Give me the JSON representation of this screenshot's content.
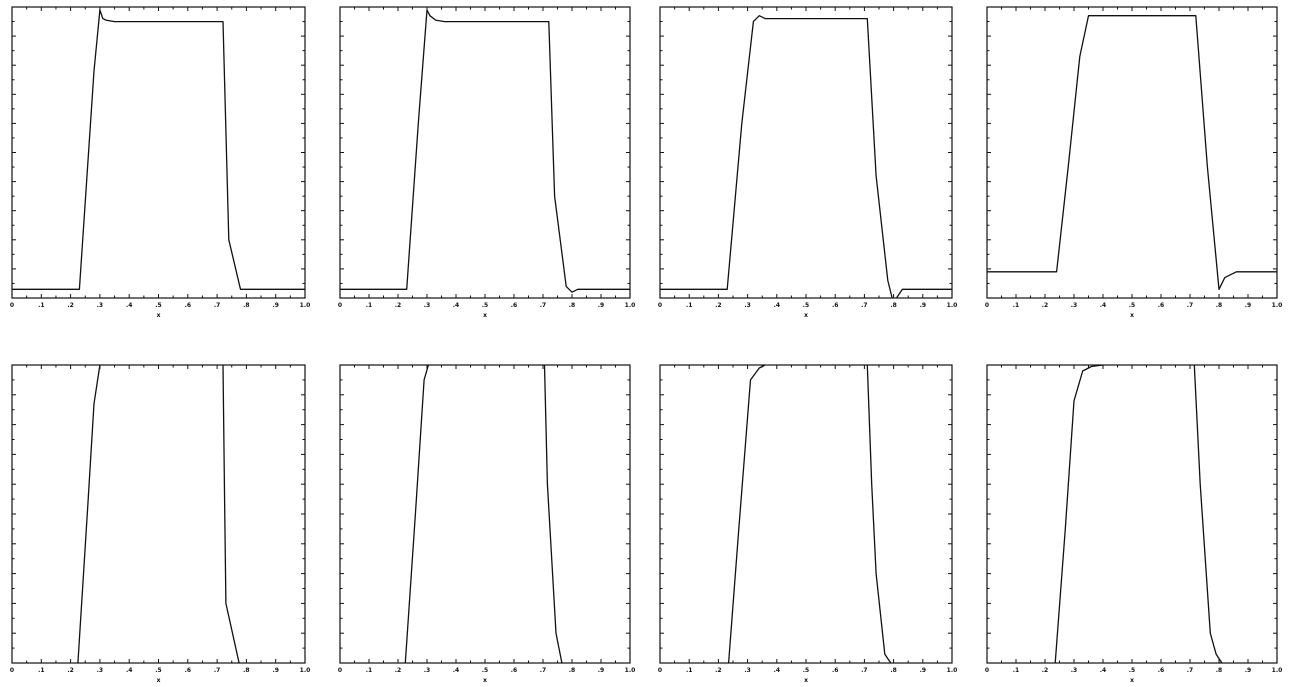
{
  "colors": {
    "line": "#111111",
    "frame": "#111111",
    "background": "#ffffff"
  },
  "chart_data": [
    {
      "type": "line",
      "panel": "row1-col1",
      "xlabel": "x",
      "xlim": [
        0,
        1
      ],
      "ylim": [
        0,
        1
      ],
      "xticks": [
        "0",
        ".1",
        ".2",
        ".3",
        ".4",
        ".5",
        ".6",
        ".7",
        ".8",
        ".9",
        "1.0"
      ],
      "grid": false,
      "series": [
        {
          "x": [
            0,
            0.23,
            0.28,
            0.3,
            0.31,
            0.32,
            0.35,
            0.4,
            0.72,
            0.74,
            0.78,
            1.0
          ],
          "y": [
            0.03,
            0.03,
            0.78,
            0.99,
            0.96,
            0.955,
            0.95,
            0.95,
            0.95,
            0.2,
            0.03,
            0.03
          ]
        }
      ]
    },
    {
      "type": "line",
      "panel": "row1-col2",
      "xlabel": "x",
      "xlim": [
        0,
        1
      ],
      "ylim": [
        0,
        1
      ],
      "xticks": [
        "0",
        ".1",
        ".2",
        ".3",
        ".4",
        ".5",
        ".6",
        ".7",
        ".8",
        ".9",
        "1.0"
      ],
      "grid": false,
      "series": [
        {
          "x": [
            0,
            0.23,
            0.27,
            0.3,
            0.31,
            0.33,
            0.36,
            0.4,
            0.72,
            0.74,
            0.78,
            0.8,
            0.82,
            1.0
          ],
          "y": [
            0.03,
            0.03,
            0.6,
            0.99,
            0.97,
            0.955,
            0.95,
            0.95,
            0.95,
            0.35,
            0.04,
            0.02,
            0.03,
            0.03
          ]
        }
      ]
    },
    {
      "type": "line",
      "panel": "row1-col3",
      "xlabel": "x",
      "xlim": [
        0,
        1
      ],
      "ylim": [
        0,
        1
      ],
      "xticks": [
        "0",
        ".1",
        ".2",
        ".3",
        ".4",
        ".5",
        ".6",
        ".7",
        ".8",
        ".9",
        "1.0"
      ],
      "grid": false,
      "series": [
        {
          "x": [
            0,
            0.23,
            0.28,
            0.32,
            0.34,
            0.36,
            0.4,
            0.71,
            0.74,
            0.78,
            0.8,
            0.81,
            0.83,
            1.0
          ],
          "y": [
            0.03,
            0.03,
            0.6,
            0.95,
            0.97,
            0.96,
            0.96,
            0.96,
            0.42,
            0.06,
            -0.02,
            0.0,
            0.03,
            0.03
          ]
        }
      ]
    },
    {
      "type": "line",
      "panel": "row1-col4",
      "xlabel": "x",
      "xlim": [
        0,
        1
      ],
      "ylim": [
        0,
        1
      ],
      "xticks": [
        "0",
        ".1",
        ".2",
        ".3",
        ".4",
        ".5",
        ".6",
        ".7",
        ".8",
        ".9",
        "1.0"
      ],
      "grid": false,
      "series": [
        {
          "x": [
            0,
            0.24,
            0.28,
            0.32,
            0.35,
            0.38,
            0.72,
            0.76,
            0.8,
            0.82,
            0.86,
            1.0
          ],
          "y": [
            0.09,
            0.09,
            0.45,
            0.83,
            0.97,
            0.97,
            0.97,
            0.45,
            0.03,
            0.07,
            0.09,
            0.09
          ]
        }
      ]
    },
    {
      "type": "line",
      "panel": "row2-col1",
      "xlabel": "x",
      "xlim": [
        0,
        1
      ],
      "ylim": [
        0,
        1
      ],
      "xticks": [
        "0",
        ".1",
        ".2",
        ".3",
        ".4",
        ".5",
        ".6",
        ".7",
        ".8",
        ".9",
        "1.0"
      ],
      "grid": false,
      "series": [
        {
          "x": [
            0.225,
            0.26,
            0.28,
            0.3
          ],
          "y": [
            0.0,
            0.55,
            0.87,
            1.0
          ]
        },
        {
          "x": [
            0.72,
            0.725,
            0.73,
            0.775
          ],
          "y": [
            1.0,
            0.6,
            0.2,
            0.0
          ]
        }
      ]
    },
    {
      "type": "line",
      "panel": "row2-col2",
      "xlabel": "x",
      "xlim": [
        0,
        1
      ],
      "ylim": [
        0,
        1
      ],
      "xticks": [
        "0",
        ".1",
        ".2",
        ".3",
        ".4",
        ".5",
        ".6",
        ".7",
        ".8",
        ".9",
        "1.0"
      ],
      "grid": false,
      "series": [
        {
          "x": [
            0.225,
            0.26,
            0.29,
            0.305
          ],
          "y": [
            0.0,
            0.5,
            0.95,
            1.0
          ]
        },
        {
          "x": [
            0.705,
            0.715,
            0.745,
            0.765
          ],
          "y": [
            1.0,
            0.6,
            0.1,
            0.0
          ]
        }
      ]
    },
    {
      "type": "line",
      "panel": "row2-col3",
      "xlabel": "x",
      "xlim": [
        0,
        1
      ],
      "ylim": [
        0,
        1
      ],
      "xticks": [
        "0",
        ".1",
        ".2",
        ".3",
        ".4",
        ".5",
        ".6",
        ".7",
        ".8",
        ".9",
        "1.0"
      ],
      "grid": false,
      "series": [
        {
          "x": [
            0.235,
            0.27,
            0.31,
            0.34,
            0.36
          ],
          "y": [
            0.0,
            0.45,
            0.95,
            0.99,
            1.0
          ]
        },
        {
          "x": [
            0.71,
            0.725,
            0.74,
            0.77,
            0.79
          ],
          "y": [
            1.0,
            0.6,
            0.3,
            0.03,
            0.0
          ]
        }
      ]
    },
    {
      "type": "line",
      "panel": "row2-col4",
      "xlabel": "x",
      "xlim": [
        0,
        1
      ],
      "ylim": [
        0,
        1
      ],
      "xticks": [
        "0",
        ".1",
        ".2",
        ".3",
        ".4",
        ".5",
        ".6",
        ".7",
        ".8",
        ".9",
        "1.0"
      ],
      "grid": false,
      "series": [
        {
          "x": [
            0.235,
            0.27,
            0.3,
            0.33,
            0.36,
            0.4
          ],
          "y": [
            0.0,
            0.45,
            0.88,
            0.98,
            0.995,
            1.0
          ]
        },
        {
          "x": [
            0.715,
            0.735,
            0.77,
            0.79,
            0.81
          ],
          "y": [
            1.0,
            0.6,
            0.1,
            0.03,
            0.0
          ]
        }
      ]
    }
  ]
}
